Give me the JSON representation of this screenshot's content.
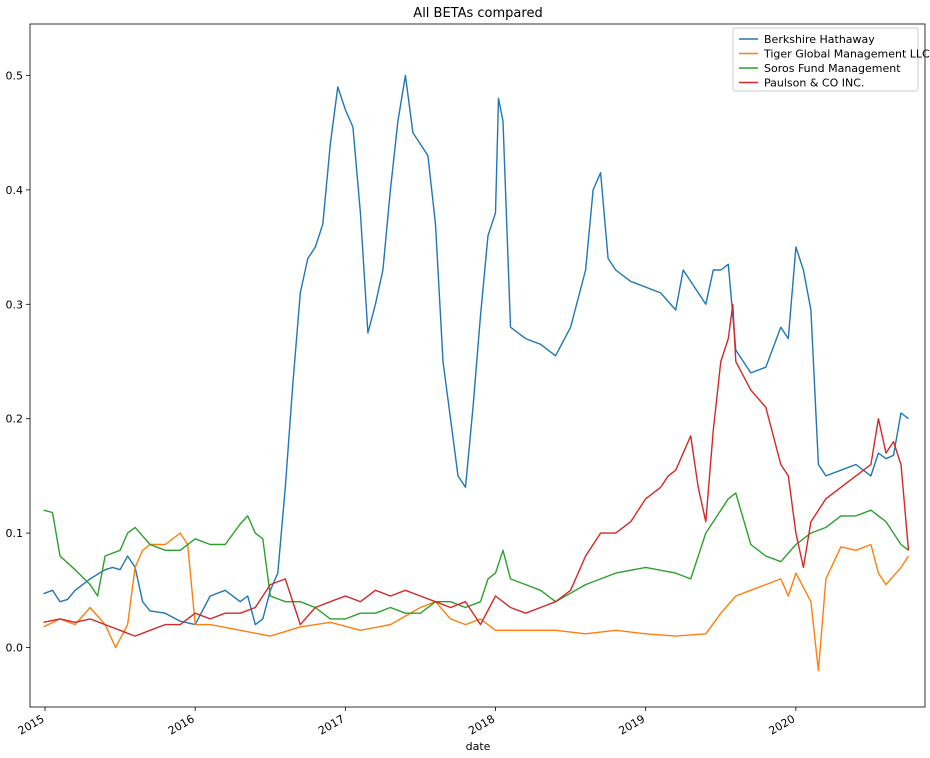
{
  "chart_data": {
    "type": "line",
    "title": "All BETAs compared",
    "xlabel": "date",
    "ylabel": "",
    "xlim": [
      2014.9,
      2020.86
    ],
    "ylim": [
      -0.052,
      0.545
    ],
    "x_ticks": [
      {
        "value": 2015,
        "label": "2015"
      },
      {
        "value": 2016,
        "label": "2016"
      },
      {
        "value": 2017,
        "label": "2017"
      },
      {
        "value": 2018,
        "label": "2018"
      },
      {
        "value": 2019,
        "label": "2019"
      },
      {
        "value": 2020,
        "label": "2020"
      }
    ],
    "y_ticks": [
      {
        "value": 0.0,
        "label": "0.0"
      },
      {
        "value": 0.1,
        "label": "0.1"
      },
      {
        "value": 0.2,
        "label": "0.2"
      },
      {
        "value": 0.3,
        "label": "0.3"
      },
      {
        "value": 0.4,
        "label": "0.4"
      },
      {
        "value": 0.5,
        "label": "0.5"
      }
    ],
    "grid": false,
    "legend_position": "top-right",
    "series": [
      {
        "name": "Berkshire Hathaway",
        "color": "#1f77b4",
        "x": [
          2014.99,
          2015.05,
          2015.1,
          2015.15,
          2015.2,
          2015.3,
          2015.4,
          2015.45,
          2015.5,
          2015.55,
          2015.6,
          2015.65,
          2015.7,
          2015.8,
          2015.9,
          2016.0,
          2016.1,
          2016.2,
          2016.3,
          2016.35,
          2016.4,
          2016.45,
          2016.5,
          2016.55,
          2016.6,
          2016.65,
          2016.7,
          2016.75,
          2016.8,
          2016.85,
          2016.9,
          2016.95,
          2017.0,
          2017.05,
          2017.1,
          2017.15,
          2017.2,
          2017.25,
          2017.3,
          2017.35,
          2017.4,
          2017.45,
          2017.5,
          2017.55,
          2017.6,
          2017.65,
          2017.7,
          2017.75,
          2017.8,
          2017.85,
          2017.9,
          2017.95,
          2018.0,
          2018.02,
          2018.05,
          2018.1,
          2018.2,
          2018.3,
          2018.4,
          2018.5,
          2018.6,
          2018.65,
          2018.7,
          2018.75,
          2018.8,
          2018.9,
          2019.0,
          2019.1,
          2019.2,
          2019.25,
          2019.3,
          2019.4,
          2019.45,
          2019.5,
          2019.55,
          2019.6,
          2019.7,
          2019.8,
          2019.9,
          2019.95,
          2020.0,
          2020.05,
          2020.1,
          2020.15,
          2020.2,
          2020.3,
          2020.4,
          2020.5,
          2020.55,
          2020.6,
          2020.65,
          2020.7,
          2020.75
        ],
        "y": [
          0.047,
          0.05,
          0.04,
          0.042,
          0.05,
          0.06,
          0.068,
          0.07,
          0.068,
          0.08,
          0.07,
          0.04,
          0.032,
          0.03,
          0.023,
          0.02,
          0.045,
          0.05,
          0.04,
          0.045,
          0.02,
          0.025,
          0.05,
          0.065,
          0.14,
          0.23,
          0.31,
          0.34,
          0.35,
          0.37,
          0.44,
          0.49,
          0.47,
          0.455,
          0.38,
          0.275,
          0.3,
          0.33,
          0.4,
          0.46,
          0.5,
          0.45,
          0.44,
          0.43,
          0.37,
          0.25,
          0.2,
          0.15,
          0.14,
          0.21,
          0.29,
          0.36,
          0.38,
          0.48,
          0.46,
          0.28,
          0.27,
          0.265,
          0.255,
          0.28,
          0.33,
          0.4,
          0.415,
          0.34,
          0.33,
          0.32,
          0.315,
          0.31,
          0.295,
          0.33,
          0.32,
          0.3,
          0.33,
          0.33,
          0.335,
          0.26,
          0.24,
          0.245,
          0.28,
          0.27,
          0.35,
          0.33,
          0.295,
          0.16,
          0.15,
          0.155,
          0.16,
          0.15,
          0.17,
          0.165,
          0.168,
          0.205,
          0.2
        ]
      },
      {
        "name": "Tiger Global Management LLC",
        "color": "#ff7f0e",
        "x": [
          2014.99,
          2015.1,
          2015.2,
          2015.3,
          2015.4,
          2015.47,
          2015.55,
          2015.6,
          2015.65,
          2015.7,
          2015.8,
          2015.9,
          2015.95,
          2016.0,
          2016.1,
          2016.3,
          2016.5,
          2016.7,
          2016.9,
          2017.1,
          2017.3,
          2017.5,
          2017.6,
          2017.7,
          2017.8,
          2017.9,
          2018.0,
          2018.2,
          2018.4,
          2018.6,
          2018.8,
          2019.0,
          2019.2,
          2019.4,
          2019.5,
          2019.6,
          2019.7,
          2019.8,
          2019.9,
          2019.95,
          2020.0,
          2020.1,
          2020.15,
          2020.2,
          2020.3,
          2020.4,
          2020.5,
          2020.55,
          2020.6,
          2020.7,
          2020.75
        ],
        "y": [
          0.018,
          0.025,
          0.02,
          0.035,
          0.02,
          0.0,
          0.02,
          0.07,
          0.085,
          0.09,
          0.09,
          0.1,
          0.09,
          0.02,
          0.02,
          0.015,
          0.01,
          0.018,
          0.022,
          0.015,
          0.02,
          0.035,
          0.04,
          0.025,
          0.02,
          0.025,
          0.015,
          0.015,
          0.015,
          0.012,
          0.015,
          0.012,
          0.01,
          0.012,
          0.03,
          0.045,
          0.05,
          0.055,
          0.06,
          0.045,
          0.065,
          0.04,
          -0.02,
          0.06,
          0.088,
          0.085,
          0.09,
          0.065,
          0.055,
          0.07,
          0.08
        ]
      },
      {
        "name": "Soros Fund Management",
        "color": "#2ca02c",
        "x": [
          2014.99,
          2015.05,
          2015.1,
          2015.2,
          2015.3,
          2015.35,
          2015.4,
          2015.5,
          2015.55,
          2015.6,
          2015.7,
          2015.8,
          2015.9,
          2016.0,
          2016.1,
          2016.2,
          2016.3,
          2016.35,
          2016.4,
          2016.45,
          2016.5,
          2016.6,
          2016.7,
          2016.8,
          2016.9,
          2017.0,
          2017.1,
          2017.2,
          2017.3,
          2017.4,
          2017.5,
          2017.6,
          2017.7,
          2017.8,
          2017.9,
          2017.95,
          2018.0,
          2018.05,
          2018.1,
          2018.2,
          2018.3,
          2018.4,
          2018.6,
          2018.8,
          2019.0,
          2019.2,
          2019.3,
          2019.4,
          2019.5,
          2019.55,
          2019.6,
          2019.7,
          2019.8,
          2019.9,
          2020.0,
          2020.1,
          2020.2,
          2020.3,
          2020.4,
          2020.5,
          2020.6,
          2020.7,
          2020.75
        ],
        "y": [
          0.12,
          0.118,
          0.08,
          0.068,
          0.055,
          0.045,
          0.08,
          0.085,
          0.1,
          0.105,
          0.09,
          0.085,
          0.085,
          0.095,
          0.09,
          0.09,
          0.108,
          0.115,
          0.1,
          0.095,
          0.045,
          0.04,
          0.04,
          0.035,
          0.025,
          0.025,
          0.03,
          0.03,
          0.035,
          0.03,
          0.03,
          0.04,
          0.04,
          0.035,
          0.04,
          0.06,
          0.065,
          0.085,
          0.06,
          0.055,
          0.05,
          0.04,
          0.055,
          0.065,
          0.07,
          0.065,
          0.06,
          0.1,
          0.12,
          0.13,
          0.135,
          0.09,
          0.08,
          0.075,
          0.09,
          0.1,
          0.105,
          0.115,
          0.115,
          0.12,
          0.11,
          0.09,
          0.085
        ]
      },
      {
        "name": "Paulson & CO INC.",
        "color": "#d62728",
        "x": [
          2014.99,
          2015.1,
          2015.2,
          2015.3,
          2015.4,
          2015.5,
          2015.6,
          2015.7,
          2015.8,
          2015.9,
          2016.0,
          2016.1,
          2016.2,
          2016.3,
          2016.4,
          2016.5,
          2016.6,
          2016.7,
          2016.8,
          2016.9,
          2017.0,
          2017.1,
          2017.2,
          2017.3,
          2017.4,
          2017.5,
          2017.6,
          2017.7,
          2017.8,
          2017.9,
          2018.0,
          2018.1,
          2018.2,
          2018.3,
          2018.4,
          2018.5,
          2018.6,
          2018.7,
          2018.8,
          2018.9,
          2019.0,
          2019.1,
          2019.15,
          2019.2,
          2019.3,
          2019.35,
          2019.4,
          2019.45,
          2019.5,
          2019.55,
          2019.58,
          2019.6,
          2019.7,
          2019.8,
          2019.9,
          2019.95,
          2020.0,
          2020.05,
          2020.1,
          2020.2,
          2020.3,
          2020.4,
          2020.5,
          2020.55,
          2020.6,
          2020.65,
          2020.7,
          2020.75
        ],
        "y": [
          0.022,
          0.025,
          0.022,
          0.025,
          0.02,
          0.015,
          0.01,
          0.015,
          0.02,
          0.02,
          0.03,
          0.025,
          0.03,
          0.03,
          0.035,
          0.055,
          0.06,
          0.02,
          0.035,
          0.04,
          0.045,
          0.04,
          0.05,
          0.045,
          0.05,
          0.045,
          0.04,
          0.035,
          0.04,
          0.02,
          0.045,
          0.035,
          0.03,
          0.035,
          0.04,
          0.05,
          0.08,
          0.1,
          0.1,
          0.11,
          0.13,
          0.14,
          0.15,
          0.155,
          0.185,
          0.14,
          0.11,
          0.19,
          0.25,
          0.27,
          0.3,
          0.25,
          0.225,
          0.21,
          0.16,
          0.15,
          0.1,
          0.07,
          0.11,
          0.13,
          0.14,
          0.15,
          0.16,
          0.2,
          0.17,
          0.18,
          0.16,
          0.085
        ]
      }
    ]
  }
}
